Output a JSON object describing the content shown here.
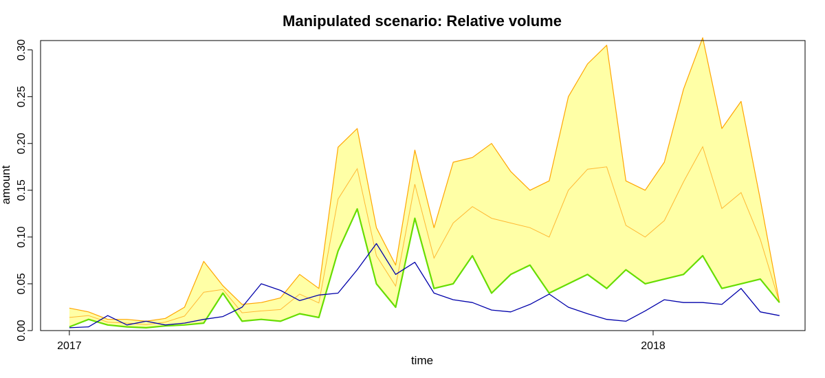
{
  "chart_data": {
    "type": "line",
    "title": "Manipulated scenario: Relative volume",
    "xlabel": "time",
    "ylabel": "amount",
    "xlim": [
      "2016-12-14",
      "2018-04-06"
    ],
    "ylim": [
      0,
      0.31
    ],
    "x_ticks": [
      {
        "date": "2017-01-01",
        "label": "2017"
      },
      {
        "date": "2018-01-01",
        "label": "2018"
      }
    ],
    "y_ticks": [
      {
        "value": 0.0,
        "label": "0.00"
      },
      {
        "value": 0.05,
        "label": "0.05"
      },
      {
        "value": 0.1,
        "label": "0.10"
      },
      {
        "value": 0.15,
        "label": "0.15"
      },
      {
        "value": 0.2,
        "label": "0.20"
      },
      {
        "value": 0.25,
        "label": "0.25"
      },
      {
        "value": 0.3,
        "label": "0.30"
      }
    ],
    "grid": false,
    "legend": "none",
    "colors": {
      "band_fill": "#ffffa6",
      "upper_bound": "#ffa500",
      "quantile_lines": "#ffb833",
      "median": "#66dd00",
      "observed": "#0000aa"
    },
    "series": [
      {
        "role": "observed",
        "x": [
          "2017-01-01",
          "2017-01-13",
          "2017-01-25",
          "2017-02-06",
          "2017-02-18",
          "2017-03-02",
          "2017-03-14",
          "2017-03-26",
          "2017-04-07",
          "2017-04-19",
          "2017-05-01",
          "2017-05-13",
          "2017-05-25",
          "2017-06-06",
          "2017-06-18",
          "2017-06-30",
          "2017-07-12",
          "2017-07-24",
          "2017-08-05",
          "2017-08-17",
          "2017-08-29",
          "2017-09-10",
          "2017-09-22",
          "2017-10-04",
          "2017-10-16",
          "2017-10-28",
          "2017-11-09",
          "2017-11-21",
          "2017-12-03",
          "2017-12-15",
          "2017-12-27",
          "2018-01-08",
          "2018-01-20",
          "2018-02-01",
          "2018-02-13",
          "2018-02-25",
          "2018-03-09",
          "2018-03-21"
        ],
        "y": [
          0.003,
          0.004,
          0.016,
          0.006,
          0.01,
          0.006,
          0.008,
          0.012,
          0.015,
          0.025,
          0.05,
          0.043,
          0.032,
          0.038,
          0.04,
          0.065,
          0.093,
          0.06,
          0.073,
          0.04,
          0.033,
          0.03,
          0.022,
          0.02,
          0.028,
          0.039,
          0.025,
          0.018,
          0.012,
          0.01,
          0.021,
          0.033,
          0.03,
          0.03,
          0.028,
          0.045,
          0.02,
          0.016
        ]
      },
      {
        "role": "median",
        "x": [
          "2017-01-01",
          "2017-01-13",
          "2017-01-25",
          "2017-02-06",
          "2017-02-18",
          "2017-03-02",
          "2017-03-14",
          "2017-03-26",
          "2017-04-07",
          "2017-04-19",
          "2017-05-01",
          "2017-05-13",
          "2017-05-25",
          "2017-06-06",
          "2017-06-18",
          "2017-06-30",
          "2017-07-12",
          "2017-07-24",
          "2017-08-05",
          "2017-08-17",
          "2017-08-29",
          "2017-09-10",
          "2017-09-22",
          "2017-10-04",
          "2017-10-16",
          "2017-10-28",
          "2017-11-09",
          "2017-11-21",
          "2017-12-03",
          "2017-12-15",
          "2017-12-27",
          "2018-01-08",
          "2018-01-20",
          "2018-02-01",
          "2018-02-13",
          "2018-02-25",
          "2018-03-09",
          "2018-03-21"
        ],
        "y": [
          0.004,
          0.012,
          0.006,
          0.004,
          0.003,
          0.005,
          0.006,
          0.008,
          0.04,
          0.01,
          0.012,
          0.01,
          0.018,
          0.014,
          0.085,
          0.13,
          0.05,
          0.025,
          0.12,
          0.045,
          0.05,
          0.08,
          0.04,
          0.06,
          0.07,
          0.04,
          0.05,
          0.06,
          0.045,
          0.065,
          0.05,
          0.055,
          0.06,
          0.08,
          0.045,
          0.05,
          0.055,
          0.03
        ]
      },
      {
        "role": "upper-bound",
        "x": [
          "2017-01-01",
          "2017-01-13",
          "2017-01-25",
          "2017-02-06",
          "2017-02-18",
          "2017-03-02",
          "2017-03-14",
          "2017-03-26",
          "2017-04-07",
          "2017-04-19",
          "2017-05-01",
          "2017-05-13",
          "2017-05-25",
          "2017-06-06",
          "2017-06-18",
          "2017-06-30",
          "2017-07-12",
          "2017-07-24",
          "2017-08-05",
          "2017-08-17",
          "2017-08-29",
          "2017-09-10",
          "2017-09-22",
          "2017-10-04",
          "2017-10-16",
          "2017-10-28",
          "2017-11-09",
          "2017-11-21",
          "2017-12-03",
          "2017-12-15",
          "2017-12-27",
          "2018-01-08",
          "2018-01-20",
          "2018-02-01",
          "2018-02-13",
          "2018-02-25",
          "2018-03-09",
          "2018-03-21"
        ],
        "y": [
          0.024,
          0.02,
          0.012,
          0.012,
          0.01,
          0.013,
          0.025,
          0.074,
          0.048,
          0.028,
          0.03,
          0.035,
          0.06,
          0.045,
          0.196,
          0.216,
          0.11,
          0.07,
          0.193,
          0.11,
          0.18,
          0.185,
          0.2,
          0.17,
          0.15,
          0.16,
          0.25,
          0.285,
          0.305,
          0.16,
          0.15,
          0.18,
          0.258,
          0.313,
          0.216,
          0.245,
          0.14,
          0.03
        ]
      }
    ]
  }
}
